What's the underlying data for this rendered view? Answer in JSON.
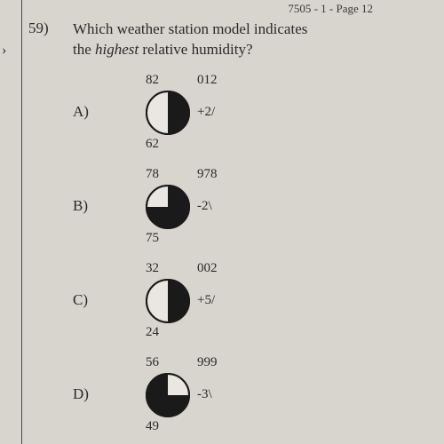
{
  "page_header": "7505 - 1 - Page 12",
  "question_number": "59)",
  "arrow": "›",
  "question": {
    "line1": "Which weather station model indicates",
    "line2_pre": "the ",
    "line2_italic": "highest",
    "line2_post": " relative humidity?"
  },
  "options": [
    {
      "letter": "A)",
      "top_left": "82",
      "top_right": "012",
      "mid_right": "+2/",
      "bottom_left": "62",
      "fill_start_deg": 0,
      "fill_sweep_deg": 180
    },
    {
      "letter": "B)",
      "top_left": "78",
      "top_right": "978",
      "mid_right": "-2\\",
      "bottom_left": "75",
      "fill_start_deg": 0,
      "fill_sweep_deg": 270
    },
    {
      "letter": "C)",
      "top_left": "32",
      "top_right": "002",
      "mid_right": "+5/",
      "bottom_left": "24",
      "fill_start_deg": 0,
      "fill_sweep_deg": 180
    },
    {
      "letter": "D)",
      "top_left": "56",
      "top_right": "999",
      "mid_right": "-3\\",
      "bottom_left": "49",
      "fill_start_deg": 90,
      "fill_sweep_deg": 270
    }
  ],
  "style": {
    "circle_stroke": "#1a1a1a",
    "circle_fill": "#1a1a1a",
    "circle_bg": "#eae7e2",
    "stroke_width": 2,
    "radius": 24
  }
}
